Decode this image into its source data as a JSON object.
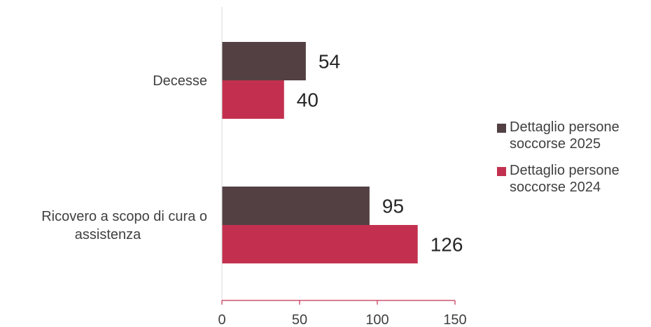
{
  "chart_data": {
    "type": "bar",
    "orientation": "horizontal",
    "categories": [
      "Decesse",
      "Ricovero a scopo di cura o assistenza"
    ],
    "series": [
      {
        "name": "Dettaglio persone soccorse 2025",
        "values": [
          54,
          95
        ],
        "color": "#524043"
      },
      {
        "name": "Dettaglio persone soccorse 2024",
        "values": [
          40,
          126
        ],
        "color": "#C3304F"
      }
    ],
    "xlim": [
      0,
      150
    ],
    "xticks": [
      0,
      50,
      100,
      150
    ],
    "axis_color": "#C3304F",
    "grid": false,
    "legend_position": "right"
  }
}
